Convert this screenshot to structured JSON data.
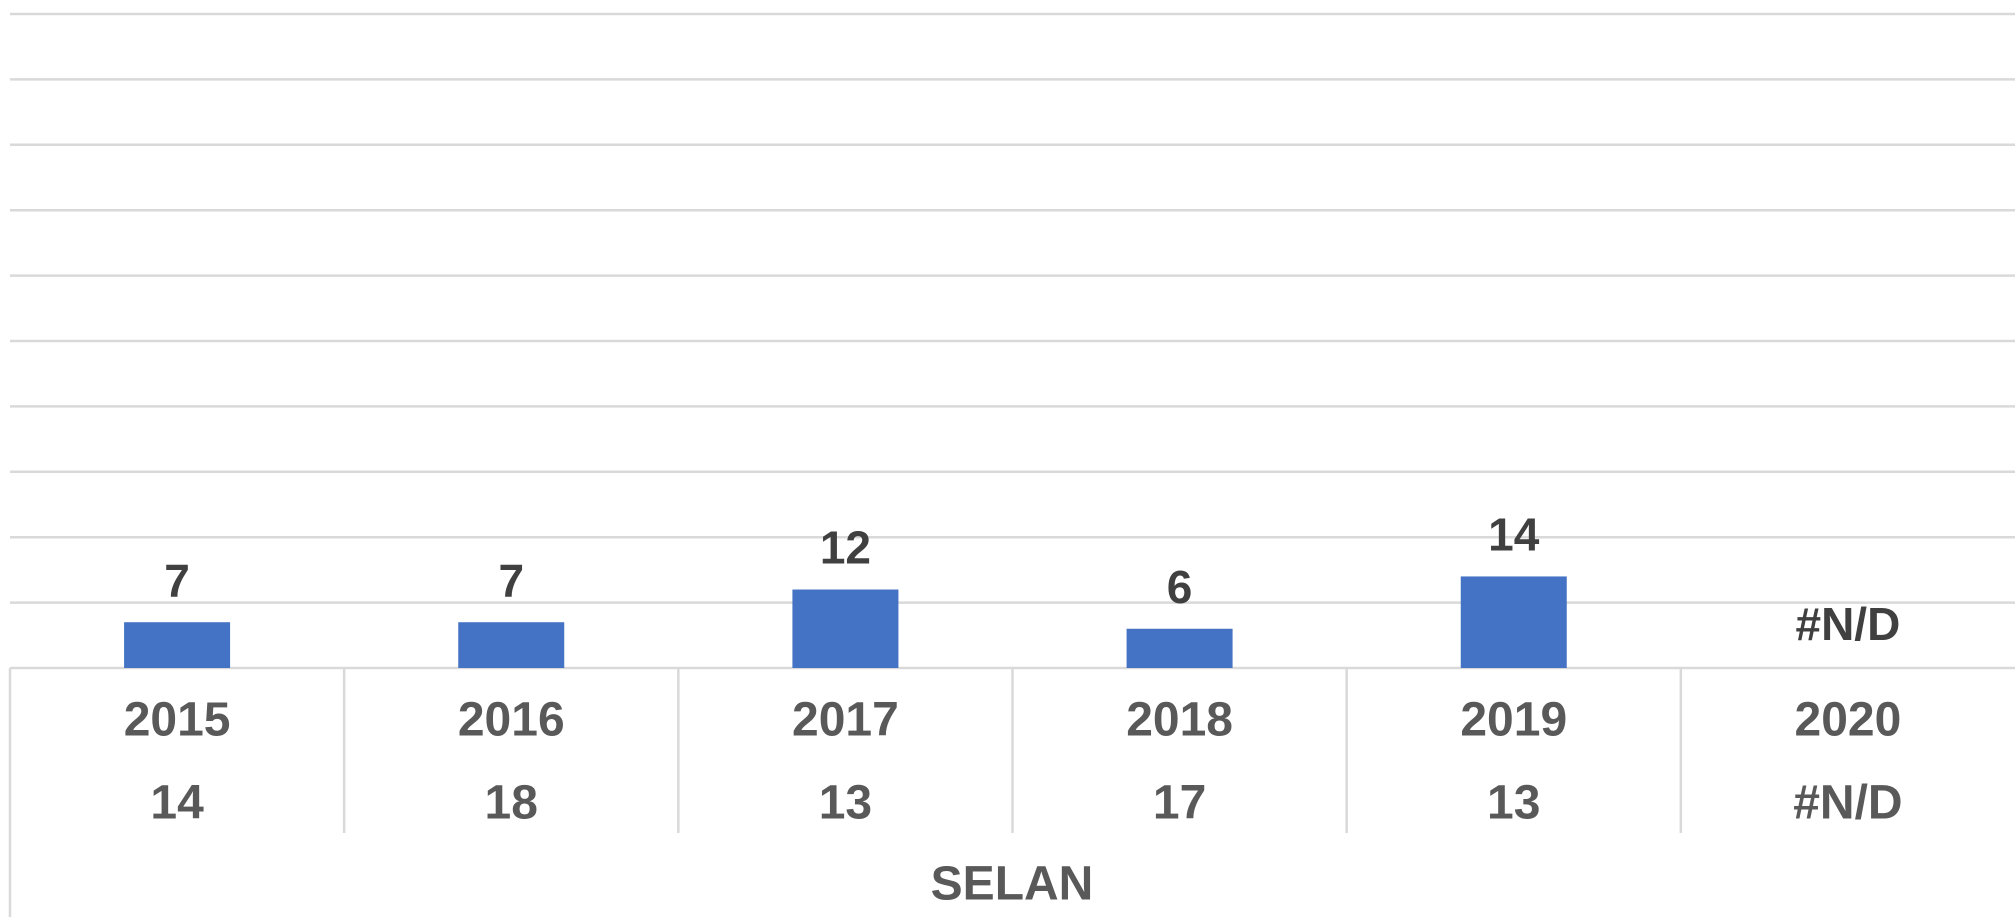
{
  "chart_data": {
    "type": "bar",
    "categories": [
      "2015",
      "2016",
      "2017",
      "2018",
      "2019",
      "2020"
    ],
    "secondary_categories": [
      "14",
      "18",
      "13",
      "17",
      "13",
      "#N/D"
    ],
    "group": "SELAN",
    "values": [
      7,
      7,
      12,
      6,
      14,
      null
    ],
    "value_labels": [
      "7",
      "7",
      "12",
      "6",
      "14",
      "#N/D"
    ],
    "color": "#4472c4",
    "ylim": [
      0,
      100
    ],
    "yticks": [
      0,
      10,
      20,
      30,
      40,
      50,
      60,
      70,
      80,
      90,
      100
    ],
    "grid": true
  }
}
